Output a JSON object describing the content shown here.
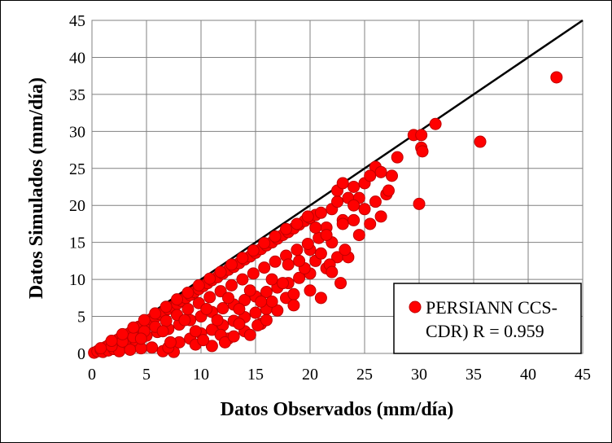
{
  "chart_data": {
    "type": "scatter",
    "title": "",
    "xlabel": "Datos Observados (mm/día)",
    "ylabel": "Datos Simulados (mm/día)",
    "xlim": [
      0,
      45
    ],
    "ylim": [
      0,
      45
    ],
    "xticks": [
      "0",
      "5",
      "10",
      "15",
      "20",
      "25",
      "30",
      "35",
      "40",
      "45"
    ],
    "yticks": [
      "0",
      "5",
      "10",
      "15",
      "20",
      "25",
      "30",
      "35",
      "40",
      "45"
    ],
    "grid": true,
    "legend": {
      "placement": "bottom-right",
      "lines": [
        "PERSIANN CCS-",
        "CDR) R = 0.959"
      ]
    },
    "colors": {
      "points": "#ff0000",
      "point_edge": "#c00000",
      "reference_line": "#000000",
      "grid": "#808080"
    },
    "reference_line": {
      "name": "1:1",
      "x": [
        0,
        45
      ],
      "y": [
        0,
        45
      ]
    },
    "series": [
      {
        "name": "PERSIANN CCS-CDR) R = 0.959",
        "points": [
          [
            0.2,
            0.1
          ],
          [
            0.5,
            0.3
          ],
          [
            0.8,
            0.5
          ],
          [
            1.0,
            0.7
          ],
          [
            1.3,
            0.9
          ],
          [
            1.6,
            1.2
          ],
          [
            2.0,
            1.5
          ],
          [
            2.3,
            1.8
          ],
          [
            2.6,
            2.1
          ],
          [
            3.0,
            2.4
          ],
          [
            3.3,
            2.6
          ],
          [
            3.6,
            2.9
          ],
          [
            4.0,
            3.3
          ],
          [
            4.3,
            3.6
          ],
          [
            4.7,
            3.9
          ],
          [
            5.0,
            4.2
          ],
          [
            5.4,
            4.6
          ],
          [
            5.8,
            4.9
          ],
          [
            6.2,
            5.3
          ],
          [
            6.6,
            5.6
          ],
          [
            7.0,
            6.0
          ],
          [
            7.4,
            6.3
          ],
          [
            7.8,
            6.7
          ],
          [
            8.2,
            7.1
          ],
          [
            8.6,
            7.5
          ],
          [
            9.0,
            7.9
          ],
          [
            9.4,
            8.3
          ],
          [
            9.8,
            8.7
          ],
          [
            10.2,
            9.1
          ],
          [
            10.6,
            9.5
          ],
          [
            11.0,
            9.9
          ],
          [
            11.5,
            10.3
          ],
          [
            12.0,
            10.8
          ],
          [
            12.5,
            11.3
          ],
          [
            13.0,
            11.7
          ],
          [
            13.5,
            12.2
          ],
          [
            14.0,
            12.7
          ],
          [
            14.5,
            13.1
          ],
          [
            15.0,
            13.6
          ],
          [
            15.5,
            14.1
          ],
          [
            16.0,
            14.6
          ],
          [
            16.5,
            15.0
          ],
          [
            17.0,
            15.5
          ],
          [
            17.5,
            16.0
          ],
          [
            18.0,
            16.4
          ],
          [
            18.5,
            16.9
          ],
          [
            19.0,
            17.4
          ],
          [
            19.5,
            17.9
          ],
          [
            20.0,
            18.3
          ],
          [
            20.5,
            18.7
          ],
          [
            3.0,
            1.2
          ],
          [
            4.0,
            1.8
          ],
          [
            5.0,
            2.4
          ],
          [
            6.0,
            2.9
          ],
          [
            7.0,
            3.3
          ],
          [
            8.0,
            3.9
          ],
          [
            9.0,
            4.5
          ],
          [
            10.0,
            5.0
          ],
          [
            11.0,
            5.6
          ],
          [
            12.0,
            6.1
          ],
          [
            13.0,
            6.6
          ],
          [
            14.0,
            7.2
          ],
          [
            15.0,
            7.7
          ],
          [
            16.0,
            8.3
          ],
          [
            17.0,
            8.9
          ],
          [
            18.0,
            9.5
          ],
          [
            19.0,
            10.2
          ],
          [
            20.0,
            10.8
          ],
          [
            6.5,
            0.3
          ],
          [
            7.5,
            0.2
          ],
          [
            5.5,
            0.8
          ],
          [
            8.0,
            1.5
          ],
          [
            9.0,
            2.0
          ],
          [
            10.0,
            2.7
          ],
          [
            11.0,
            3.2
          ],
          [
            12.0,
            3.8
          ],
          [
            13.0,
            4.4
          ],
          [
            14.0,
            4.9
          ],
          [
            15.0,
            5.5
          ],
          [
            16.0,
            6.0
          ],
          [
            11.0,
            1.0
          ],
          [
            12.5,
            2.0
          ],
          [
            14.0,
            3.0
          ],
          [
            15.5,
            4.0
          ],
          [
            17.0,
            5.8
          ],
          [
            15.2,
            3.8
          ],
          [
            13.5,
            4.0
          ],
          [
            16.5,
            7.0
          ],
          [
            17.8,
            7.5
          ],
          [
            18.5,
            8.0
          ],
          [
            19.5,
            11.5
          ],
          [
            20.5,
            12.5
          ],
          [
            21.0,
            13.5
          ],
          [
            21.5,
            11.5
          ],
          [
            22.0,
            15.0
          ],
          [
            22.5,
            13.0
          ],
          [
            23.5,
            13.0
          ],
          [
            21.0,
            7.5
          ],
          [
            22.8,
            9.5
          ],
          [
            20.0,
            14.0
          ],
          [
            21.5,
            17.0
          ],
          [
            22.0,
            19.5
          ],
          [
            22.5,
            20.5
          ],
          [
            23.0,
            18.0
          ],
          [
            23.5,
            21.0
          ],
          [
            24.0,
            22.5
          ],
          [
            24.5,
            21.0
          ],
          [
            25.0,
            23.0
          ],
          [
            25.5,
            17.5
          ],
          [
            26.0,
            20.5
          ],
          [
            26.5,
            18.5
          ],
          [
            22.5,
            22.0
          ],
          [
            23.0,
            23.0
          ],
          [
            24.0,
            20.0
          ],
          [
            25.0,
            19.5
          ],
          [
            26.0,
            25.2
          ],
          [
            26.5,
            24.5
          ],
          [
            27.0,
            21.5
          ],
          [
            27.2,
            22.0
          ],
          [
            27.5,
            24.0
          ],
          [
            28.0,
            26.5
          ],
          [
            25.5,
            24.0
          ],
          [
            24.0,
            18.0
          ],
          [
            23.0,
            17.5
          ],
          [
            29.5,
            29.5
          ],
          [
            30.2,
            29.5
          ],
          [
            30.2,
            27.8
          ],
          [
            30.3,
            27.3
          ],
          [
            30.0,
            20.2
          ],
          [
            31.5,
            31.0
          ],
          [
            35.6,
            28.6
          ],
          [
            42.6,
            37.3
          ],
          [
            1.0,
            0.2
          ],
          [
            1.5,
            0.4
          ],
          [
            2.0,
            0.6
          ],
          [
            2.5,
            0.3
          ],
          [
            3.5,
            0.5
          ],
          [
            4.5,
            0.7
          ],
          [
            1.8,
            1.0
          ],
          [
            2.8,
            1.6
          ],
          [
            3.8,
            2.2
          ],
          [
            4.8,
            3.0
          ],
          [
            5.8,
            3.6
          ],
          [
            6.8,
            4.4
          ],
          [
            7.8,
            5.2
          ],
          [
            8.8,
            6.0
          ],
          [
            9.8,
            6.8
          ],
          [
            10.8,
            7.6
          ],
          [
            11.8,
            8.4
          ],
          [
            12.8,
            9.2
          ],
          [
            13.8,
            10.0
          ],
          [
            14.8,
            10.8
          ],
          [
            15.8,
            11.6
          ],
          [
            16.8,
            12.4
          ],
          [
            17.8,
            13.2
          ],
          [
            18.8,
            14.0
          ],
          [
            19.8,
            14.8
          ],
          [
            20.8,
            15.6
          ],
          [
            21.5,
            16.0
          ],
          [
            18.0,
            12.0
          ],
          [
            16.5,
            10.0
          ],
          [
            14.5,
            8.5
          ],
          [
            12.5,
            7.5
          ],
          [
            10.5,
            6.0
          ],
          [
            8.5,
            4.5
          ],
          [
            6.5,
            3.0
          ],
          [
            4.5,
            2.0
          ],
          [
            9.5,
            3.0
          ],
          [
            11.5,
            4.5
          ],
          [
            13.5,
            6.0
          ],
          [
            15.5,
            7.0
          ],
          [
            17.5,
            9.5
          ],
          [
            19.0,
            12.5
          ],
          [
            20.5,
            17.0
          ],
          [
            21.0,
            19.0
          ],
          [
            19.8,
            18.5
          ],
          [
            18.8,
            17.5
          ],
          [
            17.8,
            16.8
          ],
          [
            16.8,
            15.8
          ],
          [
            15.8,
            14.9
          ],
          [
            14.8,
            13.9
          ],
          [
            13.8,
            12.9
          ],
          [
            12.8,
            12.0
          ],
          [
            11.8,
            11.0
          ],
          [
            10.8,
            10.1
          ],
          [
            9.8,
            9.2
          ],
          [
            8.8,
            8.2
          ],
          [
            7.8,
            7.3
          ],
          [
            6.8,
            6.3
          ],
          [
            5.8,
            5.4
          ],
          [
            4.8,
            4.5
          ],
          [
            3.8,
            3.5
          ],
          [
            2.8,
            2.6
          ],
          [
            1.8,
            1.7
          ],
          [
            0.8,
            0.7
          ],
          [
            7.0,
            0.8
          ],
          [
            7.2,
            1.5
          ],
          [
            9.5,
            1.2
          ],
          [
            10.2,
            1.8
          ],
          [
            11.8,
            2.5
          ],
          [
            12.2,
            1.5
          ],
          [
            13.0,
            2.3
          ],
          [
            14.5,
            2.5
          ],
          [
            16.0,
            4.5
          ],
          [
            18.5,
            6.5
          ],
          [
            20.0,
            8.5
          ],
          [
            21.8,
            12.0
          ],
          [
            22.0,
            11.0
          ],
          [
            23.2,
            14.0
          ],
          [
            24.5,
            16.0
          ]
        ]
      }
    ]
  }
}
